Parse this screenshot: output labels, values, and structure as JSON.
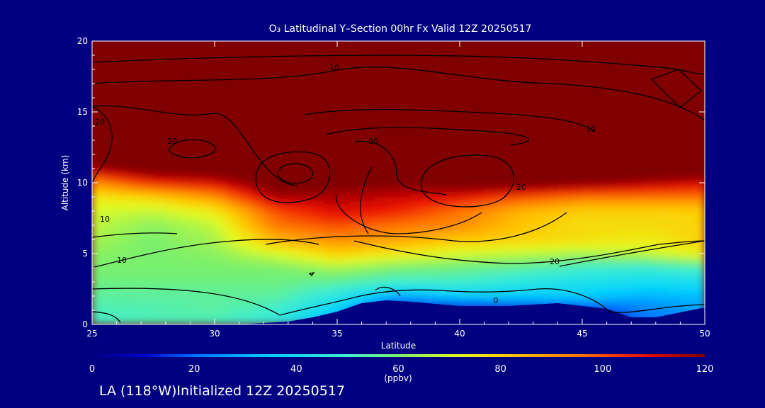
{
  "title": "O₃ Latitudinal Y–Section 00hr  Fx Valid 12Z 20250517",
  "footer": "LA (118°W)Initialized 12Z 20250517",
  "colors": {
    "background": "#000080",
    "text": "#ffffff",
    "high_ozone": "#800000",
    "ground": "#000080"
  },
  "chart_data": {
    "type": "heatmap",
    "title": "O₃ Latitudinal Y–Section 00hr  Fx Valid 12Z 20250517",
    "xlabel": "Latitude",
    "ylabel": "Altitude (km)",
    "xlim": [
      25,
      50
    ],
    "ylim": [
      0,
      20
    ],
    "x_ticks": [
      "25",
      "30",
      "35",
      "40",
      "45",
      "50"
    ],
    "y_ticks": [
      "0",
      "5",
      "10",
      "15",
      "20"
    ],
    "colorbar": {
      "label": "(ppbv)",
      "range": [
        0,
        120
      ],
      "ticks": [
        "0",
        "20",
        "40",
        "60",
        "80",
        "100",
        "120"
      ],
      "colormap": "rainbow (blue-cyan-green-yellow-red-darkred)"
    },
    "contour_labels": [
      "10",
      "20",
      "20",
      "20",
      "20",
      "10",
      "10",
      "20",
      "10",
      "0"
    ],
    "ozone_field": {
      "latitudes": [
        25,
        27.5,
        30,
        32.5,
        35,
        37.5,
        40,
        42.5,
        45,
        47.5,
        50
      ],
      "altitudes": [
        0,
        1,
        2,
        3,
        4,
        5,
        6,
        7,
        8,
        9,
        10,
        11,
        12
      ],
      "values_ppbv": [
        [
          50,
          52,
          50,
          45,
          25,
          5,
          5,
          5,
          8,
          20,
          25
        ],
        [
          52,
          53,
          55,
          50,
          35,
          5,
          5,
          8,
          12,
          22,
          28
        ],
        [
          55,
          55,
          55,
          55,
          45,
          28,
          35,
          35,
          35,
          30,
          32
        ],
        [
          58,
          58,
          58,
          58,
          55,
          50,
          50,
          45,
          42,
          40,
          40
        ],
        [
          60,
          60,
          60,
          60,
          65,
          60,
          58,
          55,
          50,
          48,
          52
        ],
        [
          62,
          60,
          62,
          70,
          80,
          75,
          70,
          68,
          65,
          68,
          75
        ],
        [
          65,
          60,
          65,
          85,
          92,
          88,
          82,
          80,
          78,
          75,
          80
        ],
        [
          68,
          62,
          68,
          95,
          100,
          95,
          92,
          82,
          78,
          78,
          80
        ],
        [
          70,
          68,
          75,
          100,
          110,
          105,
          95,
          85,
          80,
          80,
          80
        ],
        [
          75,
          80,
          90,
          115,
          115,
          112,
          108,
          100,
          95,
          95,
          95
        ],
        [
          90,
          105,
          110,
          125,
          122,
          120,
          125,
          125,
          120,
          115,
          110
        ],
        [
          115,
          125,
          125,
          130,
          130,
          130,
          130,
          130,
          130,
          130,
          130
        ],
        [
          130,
          130,
          130,
          130,
          130,
          130,
          130,
          130,
          130,
          130,
          130
        ]
      ]
    },
    "terrain_km": {
      "latitudes": [
        25,
        28,
        31,
        33,
        34,
        35,
        36,
        37,
        38,
        40,
        42,
        44,
        46,
        47,
        48,
        50
      ],
      "heights": [
        0,
        0,
        0,
        0.2,
        0.5,
        0.9,
        1.5,
        1.7,
        1.6,
        1.3,
        1.3,
        1.5,
        1.1,
        0.5,
        0.5,
        1.2
      ]
    }
  }
}
